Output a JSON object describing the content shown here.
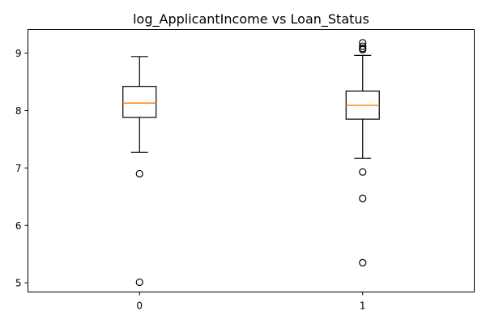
{
  "chart_data": {
    "type": "box",
    "title": "log_ApplicantIncome vs Loan_Status",
    "xlabel": "",
    "ylabel": "",
    "categories": [
      "0",
      "1"
    ],
    "ylim": [
      4.84,
      9.41
    ],
    "yticks": [
      5,
      6,
      7,
      8,
      9
    ],
    "grid": false,
    "boxes": [
      {
        "category": "0",
        "whisker_low": 7.27,
        "q1": 7.88,
        "median": 8.13,
        "q3": 8.42,
        "whisker_high": 8.94,
        "fliers": [
          6.9,
          5.01
        ]
      },
      {
        "category": "1",
        "whisker_low": 7.17,
        "q1": 7.85,
        "median": 8.09,
        "q3": 8.34,
        "whisker_high": 8.96,
        "fliers": [
          9.06,
          9.08,
          9.12,
          9.18,
          6.93,
          6.47,
          5.35
        ]
      }
    ],
    "colors": {
      "box": "#000000",
      "median": "#ff7f0e",
      "flier": "#000000"
    }
  }
}
